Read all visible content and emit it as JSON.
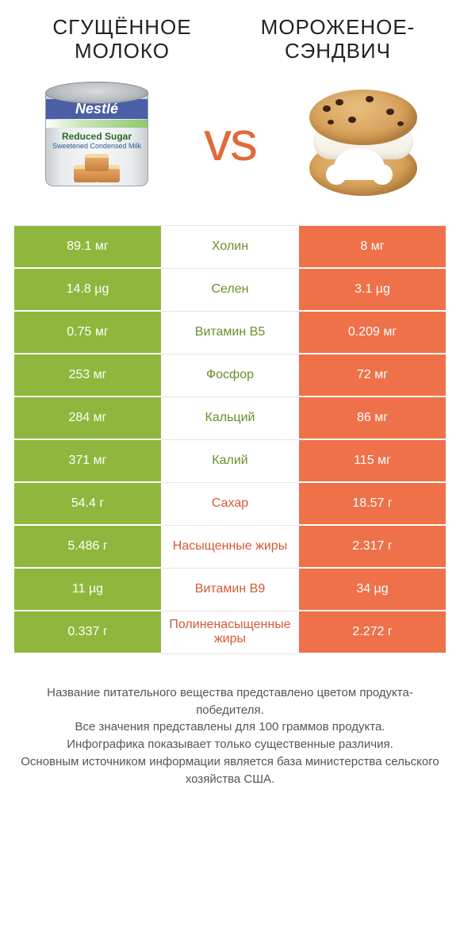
{
  "colors": {
    "left_bg": "#8fb73d",
    "right_bg": "#ee714a",
    "mid_left_text": "#6a8f2c",
    "mid_right_text": "#d45a36",
    "vs": "#e06a3a"
  },
  "titles": {
    "left": "СГУЩЁННОЕ МОЛОКО",
    "right": "МОРОЖЕНОЕ-СЭНДВИЧ"
  },
  "vs_label": "vs",
  "rows": [
    {
      "left": "89.1 мг",
      "mid": "Холин",
      "right": "8 мг",
      "winner": "left"
    },
    {
      "left": "14.8 µg",
      "mid": "Селен",
      "right": "3.1 µg",
      "winner": "left"
    },
    {
      "left": "0.75 мг",
      "mid": "Витамин B5",
      "right": "0.209 мг",
      "winner": "left"
    },
    {
      "left": "253 мг",
      "mid": "Фосфор",
      "right": "72 мг",
      "winner": "left"
    },
    {
      "left": "284 мг",
      "mid": "Кальций",
      "right": "86 мг",
      "winner": "left"
    },
    {
      "left": "371 мг",
      "mid": "Калий",
      "right": "115 мг",
      "winner": "left"
    },
    {
      "left": "54.4 г",
      "mid": "Сахар",
      "right": "18.57 г",
      "winner": "right"
    },
    {
      "left": "5.486 г",
      "mid": "Насыщенные жиры",
      "right": "2.317 г",
      "winner": "right"
    },
    {
      "left": "11 µg",
      "mid": "Витамин B9",
      "right": "34 µg",
      "winner": "right"
    },
    {
      "left": "0.337 г",
      "mid": "Полиненасыщенные жиры",
      "right": "2.272 г",
      "winner": "right"
    }
  ],
  "footer_lines": [
    "Название питательного вещества представлено цветом продукта-победителя.",
    "Все значения представлены для 100 граммов продукта.",
    "Инфографика показывает только существенные различия.",
    "Основным источником информации является база министерства сельского хозяйства США."
  ],
  "can_text": {
    "brand": "Nestlé",
    "line1": "Reduced",
    "line2": "Sugar",
    "line3": "Sweetened Condensed Milk"
  }
}
